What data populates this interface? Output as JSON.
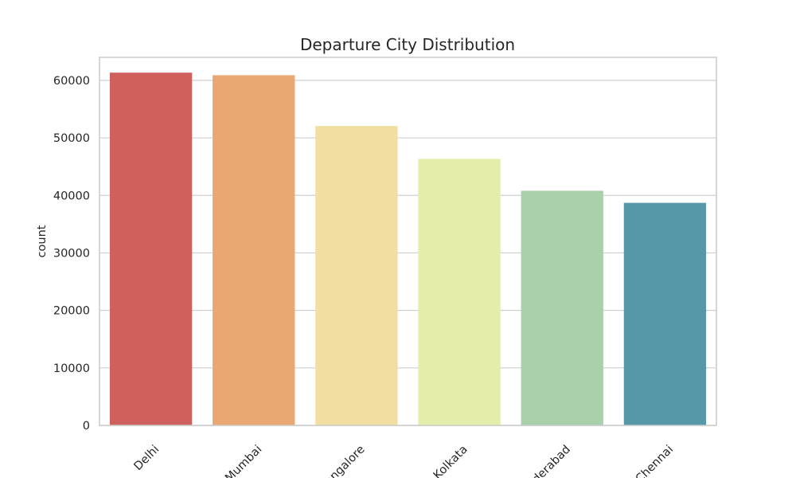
{
  "chart_data": {
    "type": "bar",
    "title": "Departure City Distribution",
    "xlabel": "",
    "ylabel": "count",
    "categories": [
      "Delhi",
      "Mumbai",
      "Bangalore",
      "Kolkata",
      "Hyderabad",
      "Chennai"
    ],
    "values": [
      61343,
      60896,
      52061,
      46347,
      40806,
      38700
    ],
    "colors": [
      "#d0605d",
      "#e9a772",
      "#f2dea0",
      "#e4eda9",
      "#a8d1aa",
      "#5698a7"
    ],
    "ylim": [
      0,
      64000
    ],
    "yticks": [
      0,
      10000,
      20000,
      30000,
      40000,
      50000,
      60000
    ],
    "grid": true,
    "legend": "none"
  }
}
